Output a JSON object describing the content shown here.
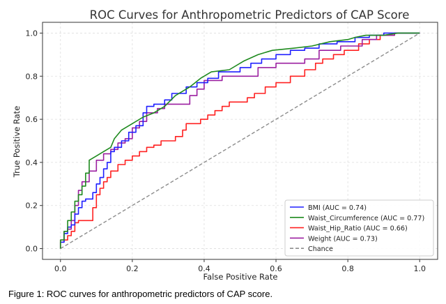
{
  "chart_data": {
    "type": "line",
    "title": "ROC Curves for Anthropometric Predictors of CAP Score",
    "xlabel": "False Positive Rate",
    "ylabel": "True Positive Rate",
    "xlim": [
      -0.05,
      1.05
    ],
    "ylim": [
      -0.05,
      1.05
    ],
    "xticks": [
      0.0,
      0.2,
      0.4,
      0.6,
      0.8,
      1.0
    ],
    "yticks": [
      0.0,
      0.2,
      0.4,
      0.6,
      0.8,
      1.0
    ],
    "x_tick_labels": [
      "0.0",
      "0.2",
      "0.4",
      "0.6",
      "0.8",
      "1.0"
    ],
    "y_tick_labels": [
      "0.0",
      "0.2",
      "0.4",
      "0.6",
      "0.8",
      "1.0"
    ],
    "grid": true,
    "legend_position": "lower-right",
    "series": [
      {
        "name": "BMI (AUC = 0.74)",
        "color": "#1f1fff",
        "points": [
          [
            0,
            0
          ],
          [
            0,
            0.03
          ],
          [
            0.01,
            0.03
          ],
          [
            0.01,
            0.07
          ],
          [
            0.02,
            0.07
          ],
          [
            0.02,
            0.1
          ],
          [
            0.03,
            0.1
          ],
          [
            0.03,
            0.11
          ],
          [
            0.04,
            0.11
          ],
          [
            0.04,
            0.16
          ],
          [
            0.05,
            0.16
          ],
          [
            0.05,
            0.19
          ],
          [
            0.06,
            0.19
          ],
          [
            0.06,
            0.22
          ],
          [
            0.07,
            0.22
          ],
          [
            0.07,
            0.23
          ],
          [
            0.09,
            0.23
          ],
          [
            0.09,
            0.26
          ],
          [
            0.1,
            0.26
          ],
          [
            0.1,
            0.3
          ],
          [
            0.11,
            0.3
          ],
          [
            0.11,
            0.33
          ],
          [
            0.12,
            0.33
          ],
          [
            0.12,
            0.37
          ],
          [
            0.13,
            0.37
          ],
          [
            0.13,
            0.4
          ],
          [
            0.14,
            0.4
          ],
          [
            0.14,
            0.45
          ],
          [
            0.15,
            0.45
          ],
          [
            0.15,
            0.47
          ],
          [
            0.17,
            0.47
          ],
          [
            0.17,
            0.5
          ],
          [
            0.19,
            0.5
          ],
          [
            0.19,
            0.54
          ],
          [
            0.21,
            0.54
          ],
          [
            0.21,
            0.57
          ],
          [
            0.23,
            0.57
          ],
          [
            0.23,
            0.63
          ],
          [
            0.24,
            0.63
          ],
          [
            0.24,
            0.66
          ],
          [
            0.26,
            0.66
          ],
          [
            0.26,
            0.67
          ],
          [
            0.29,
            0.67
          ],
          [
            0.29,
            0.69
          ],
          [
            0.31,
            0.69
          ],
          [
            0.31,
            0.72
          ],
          [
            0.35,
            0.72
          ],
          [
            0.35,
            0.75
          ],
          [
            0.38,
            0.75
          ],
          [
            0.38,
            0.77
          ],
          [
            0.41,
            0.77
          ],
          [
            0.41,
            0.79
          ],
          [
            0.44,
            0.79
          ],
          [
            0.44,
            0.82
          ],
          [
            0.5,
            0.82
          ],
          [
            0.5,
            0.84
          ],
          [
            0.53,
            0.84
          ],
          [
            0.53,
            0.86
          ],
          [
            0.56,
            0.86
          ],
          [
            0.56,
            0.88
          ],
          [
            0.6,
            0.88
          ],
          [
            0.6,
            0.9
          ],
          [
            0.64,
            0.9
          ],
          [
            0.64,
            0.92
          ],
          [
            0.68,
            0.92
          ],
          [
            0.68,
            0.93
          ],
          [
            0.72,
            0.93
          ],
          [
            0.72,
            0.95
          ],
          [
            0.77,
            0.95
          ],
          [
            0.77,
            0.96
          ],
          [
            0.82,
            0.96
          ],
          [
            0.82,
            0.98
          ],
          [
            0.86,
            0.98
          ],
          [
            0.86,
            0.99
          ],
          [
            0.9,
            0.99
          ],
          [
            0.9,
            1.0
          ],
          [
            1.0,
            1.0
          ]
        ]
      },
      {
        "name": "Waist_Circumference (AUC = 0.77)",
        "color": "#1e8a1e",
        "points": [
          [
            0,
            0
          ],
          [
            0,
            0.04
          ],
          [
            0.01,
            0.04
          ],
          [
            0.01,
            0.08
          ],
          [
            0.02,
            0.08
          ],
          [
            0.02,
            0.13
          ],
          [
            0.03,
            0.13
          ],
          [
            0.03,
            0.17
          ],
          [
            0.04,
            0.17
          ],
          [
            0.04,
            0.22
          ],
          [
            0.05,
            0.22
          ],
          [
            0.05,
            0.25
          ],
          [
            0.06,
            0.25
          ],
          [
            0.06,
            0.29
          ],
          [
            0.07,
            0.29
          ],
          [
            0.07,
            0.35
          ],
          [
            0.08,
            0.35
          ],
          [
            0.08,
            0.41
          ],
          [
            0.1,
            0.43
          ],
          [
            0.12,
            0.45
          ],
          [
            0.14,
            0.47
          ],
          [
            0.15,
            0.51
          ],
          [
            0.17,
            0.55
          ],
          [
            0.2,
            0.58
          ],
          [
            0.23,
            0.61
          ],
          [
            0.26,
            0.63
          ],
          [
            0.29,
            0.66
          ],
          [
            0.32,
            0.71
          ],
          [
            0.36,
            0.75
          ],
          [
            0.39,
            0.79
          ],
          [
            0.42,
            0.82
          ],
          [
            0.47,
            0.83
          ],
          [
            0.51,
            0.87
          ],
          [
            0.55,
            0.9
          ],
          [
            0.59,
            0.92
          ],
          [
            0.65,
            0.93
          ],
          [
            0.7,
            0.94
          ],
          [
            0.75,
            0.96
          ],
          [
            0.8,
            0.97
          ],
          [
            0.82,
            0.98
          ],
          [
            0.85,
            0.99
          ],
          [
            0.9,
            0.99
          ],
          [
            0.94,
            1.0
          ],
          [
            1.0,
            1.0
          ]
        ]
      },
      {
        "name": "Waist_Hip_Ratio (AUC = 0.66)",
        "color": "#ff2020",
        "points": [
          [
            0,
            0
          ],
          [
            0,
            0.04
          ],
          [
            0.02,
            0.04
          ],
          [
            0.02,
            0.06
          ],
          [
            0.03,
            0.06
          ],
          [
            0.03,
            0.08
          ],
          [
            0.04,
            0.08
          ],
          [
            0.04,
            0.12
          ],
          [
            0.05,
            0.12
          ],
          [
            0.05,
            0.13
          ],
          [
            0.09,
            0.13
          ],
          [
            0.09,
            0.19
          ],
          [
            0.1,
            0.19
          ],
          [
            0.1,
            0.25
          ],
          [
            0.11,
            0.25
          ],
          [
            0.11,
            0.28
          ],
          [
            0.12,
            0.28
          ],
          [
            0.12,
            0.31
          ],
          [
            0.13,
            0.31
          ],
          [
            0.13,
            0.33
          ],
          [
            0.14,
            0.33
          ],
          [
            0.14,
            0.36
          ],
          [
            0.16,
            0.36
          ],
          [
            0.16,
            0.39
          ],
          [
            0.18,
            0.39
          ],
          [
            0.18,
            0.41
          ],
          [
            0.2,
            0.41
          ],
          [
            0.2,
            0.43
          ],
          [
            0.22,
            0.43
          ],
          [
            0.22,
            0.45
          ],
          [
            0.24,
            0.45
          ],
          [
            0.24,
            0.47
          ],
          [
            0.26,
            0.47
          ],
          [
            0.26,
            0.48
          ],
          [
            0.28,
            0.48
          ],
          [
            0.28,
            0.5
          ],
          [
            0.32,
            0.5
          ],
          [
            0.32,
            0.52
          ],
          [
            0.34,
            0.52
          ],
          [
            0.34,
            0.55
          ],
          [
            0.35,
            0.55
          ],
          [
            0.35,
            0.58
          ],
          [
            0.39,
            0.58
          ],
          [
            0.39,
            0.6
          ],
          [
            0.41,
            0.6
          ],
          [
            0.41,
            0.62
          ],
          [
            0.43,
            0.62
          ],
          [
            0.43,
            0.64
          ],
          [
            0.45,
            0.64
          ],
          [
            0.45,
            0.66
          ],
          [
            0.47,
            0.66
          ],
          [
            0.47,
            0.68
          ],
          [
            0.52,
            0.68
          ],
          [
            0.52,
            0.7
          ],
          [
            0.54,
            0.7
          ],
          [
            0.54,
            0.72
          ],
          [
            0.57,
            0.72
          ],
          [
            0.57,
            0.75
          ],
          [
            0.6,
            0.75
          ],
          [
            0.6,
            0.77
          ],
          [
            0.64,
            0.77
          ],
          [
            0.64,
            0.8
          ],
          [
            0.68,
            0.8
          ],
          [
            0.68,
            0.83
          ],
          [
            0.71,
            0.83
          ],
          [
            0.71,
            0.86
          ],
          [
            0.73,
            0.86
          ],
          [
            0.73,
            0.88
          ],
          [
            0.76,
            0.88
          ],
          [
            0.76,
            0.9
          ],
          [
            0.79,
            0.9
          ],
          [
            0.79,
            0.92
          ],
          [
            0.83,
            0.92
          ],
          [
            0.83,
            0.95
          ],
          [
            0.86,
            0.95
          ],
          [
            0.86,
            0.97
          ],
          [
            0.89,
            0.97
          ],
          [
            0.89,
            0.99
          ],
          [
            0.93,
            0.99
          ],
          [
            0.93,
            1.0
          ],
          [
            1.0,
            1.0
          ]
        ]
      },
      {
        "name": "Weight (AUC = 0.73)",
        "color": "#9b1fa0",
        "points": [
          [
            0,
            0
          ],
          [
            0,
            0.03
          ],
          [
            0.01,
            0.03
          ],
          [
            0.01,
            0.08
          ],
          [
            0.02,
            0.08
          ],
          [
            0.02,
            0.09
          ],
          [
            0.03,
            0.09
          ],
          [
            0.03,
            0.13
          ],
          [
            0.04,
            0.13
          ],
          [
            0.04,
            0.2
          ],
          [
            0.05,
            0.2
          ],
          [
            0.05,
            0.27
          ],
          [
            0.06,
            0.27
          ],
          [
            0.06,
            0.31
          ],
          [
            0.08,
            0.31
          ],
          [
            0.08,
            0.36
          ],
          [
            0.1,
            0.36
          ],
          [
            0.1,
            0.41
          ],
          [
            0.12,
            0.41
          ],
          [
            0.12,
            0.44
          ],
          [
            0.14,
            0.44
          ],
          [
            0.14,
            0.46
          ],
          [
            0.16,
            0.46
          ],
          [
            0.16,
            0.49
          ],
          [
            0.18,
            0.49
          ],
          [
            0.18,
            0.51
          ],
          [
            0.2,
            0.51
          ],
          [
            0.2,
            0.56
          ],
          [
            0.22,
            0.56
          ],
          [
            0.22,
            0.59
          ],
          [
            0.24,
            0.59
          ],
          [
            0.24,
            0.63
          ],
          [
            0.27,
            0.63
          ],
          [
            0.27,
            0.65
          ],
          [
            0.29,
            0.65
          ],
          [
            0.29,
            0.67
          ],
          [
            0.36,
            0.67
          ],
          [
            0.36,
            0.71
          ],
          [
            0.38,
            0.71
          ],
          [
            0.38,
            0.74
          ],
          [
            0.4,
            0.74
          ],
          [
            0.4,
            0.78
          ],
          [
            0.45,
            0.78
          ],
          [
            0.45,
            0.8
          ],
          [
            0.55,
            0.8
          ],
          [
            0.55,
            0.84
          ],
          [
            0.6,
            0.84
          ],
          [
            0.6,
            0.86
          ],
          [
            0.68,
            0.86
          ],
          [
            0.68,
            0.88
          ],
          [
            0.72,
            0.88
          ],
          [
            0.72,
            0.92
          ],
          [
            0.78,
            0.92
          ],
          [
            0.78,
            0.94
          ],
          [
            0.84,
            0.94
          ],
          [
            0.84,
            0.97
          ],
          [
            0.88,
            0.97
          ],
          [
            0.88,
            0.99
          ],
          [
            0.93,
            0.99
          ],
          [
            0.93,
            1.0
          ],
          [
            1.0,
            1.0
          ]
        ]
      },
      {
        "name": "Chance",
        "color": "#8c8c8c",
        "dashed": true,
        "points": [
          [
            0,
            0
          ],
          [
            1,
            1
          ]
        ]
      }
    ]
  },
  "caption": "Figure 1: ROC curves for anthropometric predictors of CAP score."
}
